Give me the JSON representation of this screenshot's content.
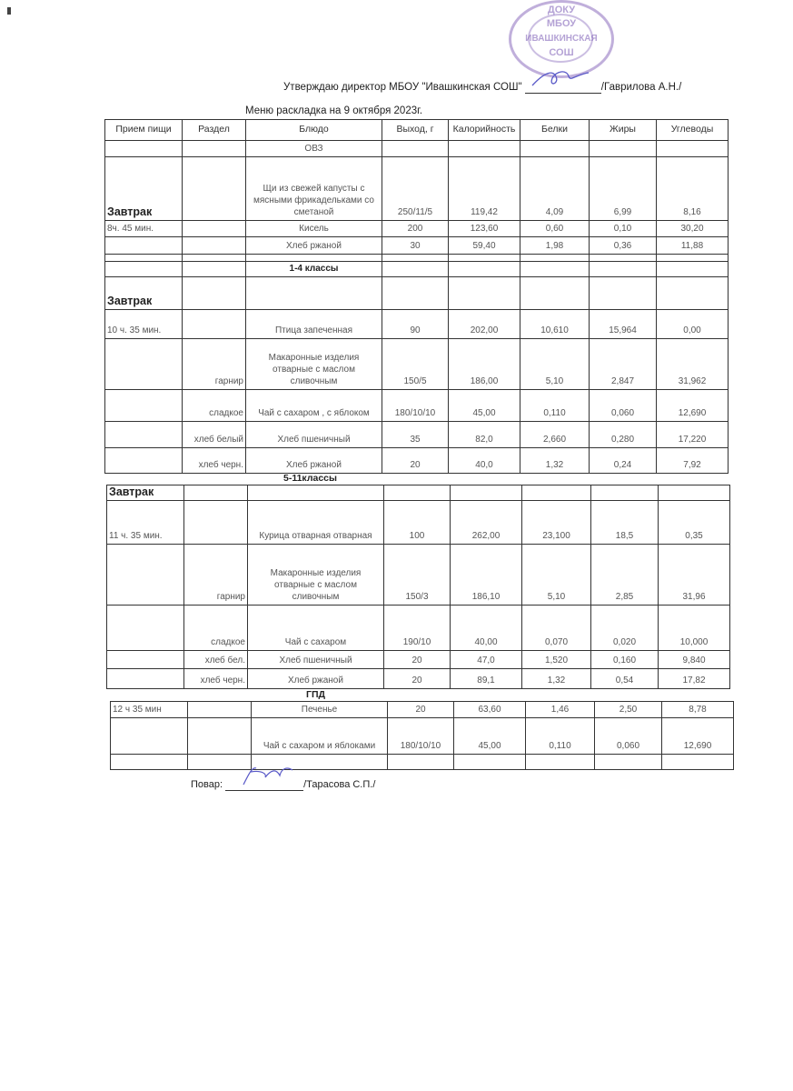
{
  "approval": {
    "text": "Утверждаю директор МБОУ \"Ивашкинская СОШ\" ",
    "signer": "/Гаврилова А.Н./"
  },
  "title": "Меню раскладка на 9 октября 2023г.",
  "stamp": {
    "lines": [
      "ДОКУ",
      "МБОУ",
      "ИВАШКИНСКАЯ",
      "СОШ"
    ],
    "color": "#8c6ebe"
  },
  "headers": [
    "Прием пищи",
    "Раздел",
    "Блюдо",
    "Выход, г",
    "Калорийность",
    "Белки",
    "Жиры",
    "Углеводы"
  ],
  "table1": [
    [
      "",
      "",
      "ОВЗ",
      "",
      "",
      "",
      "",
      ""
    ],
    [
      "Завтрак",
      "",
      "Щи из свежей капусты с мясными фрикадельками со сметаной",
      "250/11/5",
      "119,42",
      "4,09",
      "6,99",
      "8,16"
    ],
    [
      "8ч. 45 мин.",
      "",
      "Кисель",
      "200",
      "123,60",
      "0,60",
      "0,10",
      "30,20"
    ],
    [
      "",
      "",
      "Хлеб ржаной",
      "30",
      "59,40",
      "1,98",
      "0,36",
      "11,88"
    ],
    [
      "",
      "",
      "",
      "",
      "",
      "",
      "",
      ""
    ],
    [
      "",
      "",
      "1-4 классы",
      "",
      "",
      "",
      "",
      ""
    ],
    [
      "Завтрак",
      "",
      "",
      "",
      "",
      "",
      "",
      ""
    ],
    [
      "10 ч. 35 мин.",
      "",
      "Птица запеченная",
      "90",
      "202,00",
      "10,610",
      "15,964",
      "0,00"
    ],
    [
      "",
      "гарнир",
      "Макаронные изделия отварные с маслом сливочным",
      "150/5",
      "186,00",
      "5,10",
      "2,847",
      "31,962"
    ],
    [
      "",
      "сладкое",
      "Чай с сахаром , с яблоком",
      "180/10/10",
      "45,00",
      "0,110",
      "0,060",
      "12,690"
    ],
    [
      "",
      "хлеб белый",
      "Хлеб пшеничный",
      "35",
      "82,0",
      "2,660",
      "0,280",
      "17,220"
    ],
    [
      "",
      "хлеб черн.",
      "Хлеб ржаной",
      "20",
      "40,0",
      "1,32",
      "0,24",
      "7,92"
    ]
  ],
  "section2_title": "5-11классы",
  "table2": [
    [
      "Завтрак",
      "",
      "",
      "",
      "",
      "",
      "",
      ""
    ],
    [
      "11 ч. 35 мин.",
      "",
      "Курица отварная отварная",
      "100",
      "262,00",
      "23,100",
      "18,5",
      "0,35"
    ],
    [
      "",
      "гарнир",
      "Макаронные изделия отварные с маслом сливочным",
      "150/3",
      "186,10",
      "5,10",
      "2,85",
      "31,96"
    ],
    [
      "",
      "сладкое",
      "Чай с сахаром",
      "190/10",
      "40,00",
      "0,070",
      "0,020",
      "10,000"
    ],
    [
      "",
      "хлеб бел.",
      "Хлеб пшеничный",
      "20",
      "47,0",
      "1,520",
      "0,160",
      "9,840"
    ],
    [
      "",
      "хлеб черн.",
      "Хлеб ржаной",
      "20",
      "89,1",
      "1,32",
      "0,54",
      "17,82"
    ]
  ],
  "section3_title": "ГПД",
  "table3": [
    [
      "12 ч 35 мин",
      "",
      "Печенье",
      "20",
      "63,60",
      "1,46",
      "2,50",
      "8,78"
    ],
    [
      "",
      "",
      "Чай с сахаром и яблоками",
      "180/10/10",
      "45,00",
      "0,110",
      "0,060",
      "12,690"
    ],
    [
      "",
      "",
      "",
      "",
      "",
      "",
      "",
      ""
    ]
  ],
  "cook": {
    "label": "Повар: ",
    "name": "/Тарасова С.П./"
  },
  "signature_color": "#5a5ac8"
}
